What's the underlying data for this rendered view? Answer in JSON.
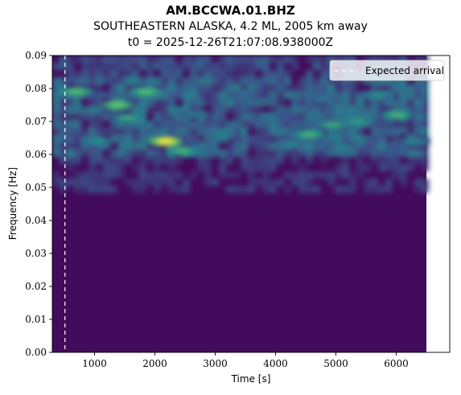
{
  "title": "AM.BCCWA.01.BHZ",
  "subtitle_line1": "SOUTHEASTERN ALASKA, 4.2 ML, 2005 km away",
  "subtitle_line2": "t0 = 2025-12-26T21:07:08.938000Z",
  "chart_data": {
    "type": "heatmap",
    "title": "AM.BCCWA.01.BHZ",
    "xlabel": "Time [s]",
    "ylabel": "Frequency [Hz]",
    "xlim": [
      300,
      6500
    ],
    "ylim": [
      0.0,
      0.09
    ],
    "x_ticks": [
      1000,
      2000,
      3000,
      4000,
      5000,
      6000
    ],
    "x_tick_labels": [
      "1000",
      "2000",
      "3000",
      "4000",
      "5000",
      "6000"
    ],
    "y_ticks": [
      0.0,
      0.01,
      0.02,
      0.03,
      0.04,
      0.05,
      0.06,
      0.07,
      0.08,
      0.09
    ],
    "y_tick_labels": [
      "0.00",
      "0.01",
      "0.02",
      "0.03",
      "0.04",
      "0.05",
      "0.06",
      "0.07",
      "0.08",
      "0.09"
    ],
    "colormap": "viridis",
    "expected_arrival_time": 510,
    "legend": {
      "label": "Expected arrival",
      "placement": "top-right",
      "style": "dashed white line"
    },
    "energy_band_hz": [
      0.06,
      0.085
    ],
    "hotspots": [
      {
        "t": 2180,
        "f": 0.064,
        "level": 1.0
      },
      {
        "t": 1380,
        "f": 0.075,
        "level": 0.75
      },
      {
        "t": 1850,
        "f": 0.079,
        "level": 0.7
      },
      {
        "t": 700,
        "f": 0.079,
        "level": 0.7
      },
      {
        "t": 2450,
        "f": 0.061,
        "level": 0.65
      },
      {
        "t": 1550,
        "f": 0.071,
        "level": 0.6
      },
      {
        "t": 4550,
        "f": 0.066,
        "level": 0.65
      },
      {
        "t": 4950,
        "f": 0.069,
        "level": 0.6
      },
      {
        "t": 5350,
        "f": 0.07,
        "level": 0.55
      },
      {
        "t": 6020,
        "f": 0.072,
        "level": 0.65
      },
      {
        "t": 5700,
        "f": 0.078,
        "level": 0.5
      },
      {
        "t": 3100,
        "f": 0.066,
        "level": 0.45
      },
      {
        "t": 3900,
        "f": 0.071,
        "level": 0.4
      },
      {
        "t": 4250,
        "f": 0.063,
        "level": 0.45
      },
      {
        "t": 1050,
        "f": 0.064,
        "level": 0.5
      },
      {
        "t": 2650,
        "f": 0.072,
        "level": 0.4
      },
      {
        "t": 3500,
        "f": 0.078,
        "level": 0.35
      },
      {
        "t": 5100,
        "f": 0.062,
        "level": 0.45
      },
      {
        "t": 6300,
        "f": 0.064,
        "level": 0.45
      },
      {
        "t": 4800,
        "f": 0.077,
        "level": 0.4
      }
    ]
  }
}
